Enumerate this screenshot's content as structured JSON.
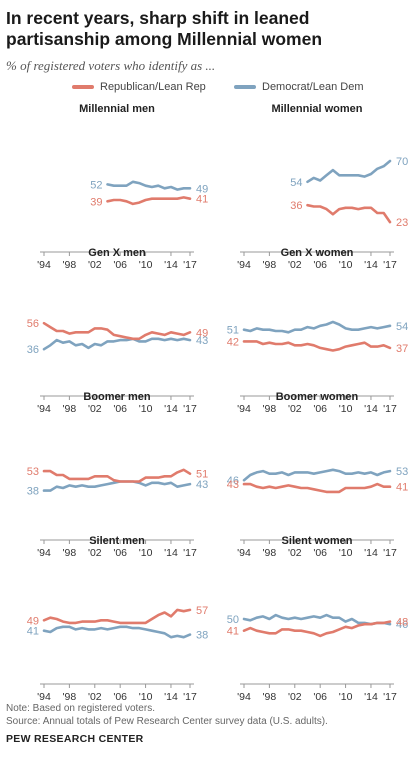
{
  "title": "In recent years, sharp shift in leaned partisanship among Millennial women",
  "subtitle": "% of registered voters who identify as ...",
  "legend": {
    "rep": "Republican/Lean Rep",
    "dem": "Democrat/Lean Dem"
  },
  "colors": {
    "rep": "#e07b6c",
    "dem": "#7fa3bf",
    "axis": "#999999",
    "text": "#222222"
  },
  "note": "Note: Based on registered voters.",
  "source": "Source: Annual totals of Pew Research Center survey data (U.S. adults).",
  "footer": "PEW RESEARCH CENTER",
  "chart_data": [
    {
      "type": "line",
      "title": "Millennial men",
      "ylim": [
        0,
        100
      ],
      "xticks": [
        "'94",
        "'98",
        "'02",
        "'06",
        "'10",
        "'14",
        "'17"
      ],
      "start_label": {
        "rep": "39",
        "dem": "52"
      },
      "end_label": {
        "rep": "41",
        "dem": "49"
      },
      "series": [
        {
          "key": "dem",
          "x": [
            2004,
            2005,
            2006,
            2007,
            2008,
            2009,
            2010,
            2011,
            2012,
            2013,
            2014,
            2015,
            2016,
            2017
          ],
          "values": [
            52,
            51,
            51,
            51,
            54,
            53,
            51,
            50,
            51,
            49,
            50,
            48,
            49,
            49
          ]
        },
        {
          "key": "rep",
          "x": [
            2004,
            2005,
            2006,
            2007,
            2008,
            2009,
            2010,
            2011,
            2012,
            2013,
            2014,
            2015,
            2016,
            2017
          ],
          "values": [
            39,
            40,
            40,
            39,
            37,
            38,
            40,
            41,
            41,
            41,
            41,
            41,
            42,
            41
          ]
        }
      ]
    },
    {
      "type": "line",
      "title": "Millennial women",
      "ylim": [
        0,
        100
      ],
      "xticks": [
        "'94",
        "'98",
        "'02",
        "'06",
        "'10",
        "'14",
        "'17"
      ],
      "start_label": {
        "rep": "36",
        "dem": "54"
      },
      "end_label": {
        "rep": "23",
        "dem": "70"
      },
      "series": [
        {
          "key": "dem",
          "x": [
            2004,
            2005,
            2006,
            2007,
            2008,
            2009,
            2010,
            2011,
            2012,
            2013,
            2014,
            2015,
            2016,
            2017
          ],
          "values": [
            54,
            57,
            55,
            59,
            63,
            59,
            59,
            59,
            59,
            58,
            60,
            64,
            66,
            70
          ]
        },
        {
          "key": "rep",
          "x": [
            2004,
            2005,
            2006,
            2007,
            2008,
            2009,
            2010,
            2011,
            2012,
            2013,
            2014,
            2015,
            2016,
            2017
          ],
          "values": [
            36,
            35,
            35,
            33,
            29,
            33,
            34,
            34,
            33,
            34,
            34,
            30,
            30,
            23
          ]
        }
      ]
    },
    {
      "type": "line",
      "title": "Gen X men",
      "ylim": [
        0,
        100
      ],
      "xticks": [
        "'94",
        "'98",
        "'02",
        "'06",
        "'10",
        "'14",
        "'17"
      ],
      "start_label": {
        "rep": "56",
        "dem": "36"
      },
      "end_label": {
        "rep": "49",
        "dem": "43"
      },
      "series": [
        {
          "key": "dem",
          "x": [
            1994,
            1995,
            1996,
            1997,
            1998,
            1999,
            2000,
            2001,
            2002,
            2003,
            2004,
            2005,
            2006,
            2007,
            2008,
            2009,
            2010,
            2011,
            2012,
            2013,
            2014,
            2015,
            2016,
            2017
          ],
          "values": [
            36,
            39,
            43,
            41,
            42,
            39,
            40,
            37,
            40,
            39,
            42,
            42,
            43,
            43,
            44,
            42,
            42,
            44,
            44,
            43,
            44,
            43,
            44,
            43
          ]
        },
        {
          "key": "rep",
          "x": [
            1994,
            1995,
            1996,
            1997,
            1998,
            1999,
            2000,
            2001,
            2002,
            2003,
            2004,
            2005,
            2006,
            2007,
            2008,
            2009,
            2010,
            2011,
            2012,
            2013,
            2014,
            2015,
            2016,
            2017
          ],
          "values": [
            56,
            53,
            50,
            50,
            48,
            49,
            49,
            49,
            52,
            52,
            51,
            47,
            46,
            45,
            44,
            44,
            47,
            49,
            48,
            47,
            49,
            48,
            47,
            49
          ]
        }
      ]
    },
    {
      "type": "line",
      "title": "Gen X women",
      "ylim": [
        0,
        100
      ],
      "xticks": [
        "'94",
        "'98",
        "'02",
        "'06",
        "'10",
        "'14",
        "'17"
      ],
      "start_label": {
        "rep": "42",
        "dem": "51"
      },
      "end_label": {
        "rep": "37",
        "dem": "54"
      },
      "series": [
        {
          "key": "dem",
          "x": [
            1994,
            1995,
            1996,
            1997,
            1998,
            1999,
            2000,
            2001,
            2002,
            2003,
            2004,
            2005,
            2006,
            2007,
            2008,
            2009,
            2010,
            2011,
            2012,
            2013,
            2014,
            2015,
            2016,
            2017
          ],
          "values": [
            51,
            50,
            52,
            51,
            51,
            50,
            50,
            49,
            51,
            51,
            53,
            52,
            54,
            55,
            57,
            55,
            52,
            51,
            51,
            52,
            53,
            52,
            53,
            54
          ]
        },
        {
          "key": "rep",
          "x": [
            1994,
            1995,
            1996,
            1997,
            1998,
            1999,
            2000,
            2001,
            2002,
            2003,
            2004,
            2005,
            2006,
            2007,
            2008,
            2009,
            2010,
            2011,
            2012,
            2013,
            2014,
            2015,
            2016,
            2017
          ],
          "values": [
            42,
            42,
            42,
            40,
            41,
            40,
            40,
            41,
            39,
            39,
            40,
            39,
            37,
            36,
            35,
            36,
            38,
            39,
            40,
            41,
            38,
            38,
            39,
            37
          ]
        }
      ]
    },
    {
      "type": "line",
      "title": "Boomer men",
      "ylim": [
        0,
        100
      ],
      "xticks": [
        "'94",
        "'98",
        "'02",
        "'06",
        "'10",
        "'14",
        "'17"
      ],
      "start_label": {
        "rep": "53",
        "dem": "38"
      },
      "end_label": {
        "rep": "51",
        "dem": "43"
      },
      "series": [
        {
          "key": "dem",
          "x": [
            1994,
            1995,
            1996,
            1997,
            1998,
            1999,
            2000,
            2001,
            2002,
            2003,
            2004,
            2005,
            2006,
            2007,
            2008,
            2009,
            2010,
            2011,
            2012,
            2013,
            2014,
            2015,
            2016,
            2017
          ],
          "values": [
            38,
            38,
            41,
            40,
            42,
            41,
            42,
            41,
            41,
            42,
            43,
            44,
            45,
            45,
            45,
            44,
            42,
            44,
            44,
            43,
            44,
            41,
            42,
            43
          ]
        },
        {
          "key": "rep",
          "x": [
            1994,
            1995,
            1996,
            1997,
            1998,
            1999,
            2000,
            2001,
            2002,
            2003,
            2004,
            2005,
            2006,
            2007,
            2008,
            2009,
            2010,
            2011,
            2012,
            2013,
            2014,
            2015,
            2016,
            2017
          ],
          "values": [
            53,
            53,
            50,
            50,
            47,
            47,
            47,
            47,
            49,
            49,
            49,
            46,
            45,
            45,
            45,
            45,
            48,
            48,
            48,
            49,
            49,
            52,
            54,
            51
          ]
        }
      ]
    },
    {
      "type": "line",
      "title": "Boomer women",
      "ylim": [
        0,
        100
      ],
      "xticks": [
        "'94",
        "'98",
        "'02",
        "'06",
        "'10",
        "'14",
        "'17"
      ],
      "start_label": {
        "rep": "43",
        "dem": "46"
      },
      "end_label": {
        "rep": "41",
        "dem": "53"
      },
      "series": [
        {
          "key": "dem",
          "x": [
            1994,
            1995,
            1996,
            1997,
            1998,
            1999,
            2000,
            2001,
            2002,
            2003,
            2004,
            2005,
            2006,
            2007,
            2008,
            2009,
            2010,
            2011,
            2012,
            2013,
            2014,
            2015,
            2016,
            2017
          ],
          "values": [
            46,
            50,
            52,
            53,
            51,
            51,
            52,
            50,
            52,
            52,
            52,
            51,
            52,
            53,
            54,
            53,
            51,
            51,
            52,
            51,
            52,
            50,
            52,
            53
          ]
        },
        {
          "key": "rep",
          "x": [
            1994,
            1995,
            1996,
            1997,
            1998,
            1999,
            2000,
            2001,
            2002,
            2003,
            2004,
            2005,
            2006,
            2007,
            2008,
            2009,
            2010,
            2011,
            2012,
            2013,
            2014,
            2015,
            2016,
            2017
          ],
          "values": [
            43,
            43,
            41,
            40,
            41,
            40,
            41,
            42,
            41,
            40,
            40,
            39,
            38,
            37,
            37,
            37,
            40,
            40,
            40,
            40,
            41,
            43,
            41,
            41
          ]
        }
      ]
    },
    {
      "type": "line",
      "title": "Silent men",
      "ylim": [
        0,
        100
      ],
      "xticks": [
        "'94",
        "'98",
        "'02",
        "'06",
        "'10",
        "'14",
        "'17"
      ],
      "start_label": {
        "rep": "49",
        "dem": "41"
      },
      "end_label": {
        "rep": "57",
        "dem": "38"
      },
      "series": [
        {
          "key": "dem",
          "x": [
            1994,
            1995,
            1996,
            1997,
            1998,
            1999,
            2000,
            2001,
            2002,
            2003,
            2004,
            2005,
            2006,
            2007,
            2008,
            2009,
            2010,
            2011,
            2012,
            2013,
            2014,
            2015,
            2016,
            2017
          ],
          "values": [
            41,
            40,
            43,
            44,
            44,
            42,
            43,
            42,
            42,
            43,
            42,
            43,
            44,
            44,
            43,
            43,
            42,
            41,
            40,
            39,
            36,
            37,
            36,
            38
          ]
        },
        {
          "key": "rep",
          "x": [
            1994,
            1995,
            1996,
            1997,
            1998,
            1999,
            2000,
            2001,
            2002,
            2003,
            2004,
            2005,
            2006,
            2007,
            2008,
            2009,
            2010,
            2011,
            2012,
            2013,
            2014,
            2015,
            2016,
            2017
          ],
          "values": [
            49,
            51,
            50,
            48,
            47,
            47,
            48,
            48,
            48,
            49,
            49,
            48,
            47,
            47,
            47,
            47,
            47,
            50,
            53,
            55,
            52,
            57,
            56,
            57
          ]
        }
      ]
    },
    {
      "type": "line",
      "title": "Silent women",
      "ylim": [
        0,
        100
      ],
      "xticks": [
        "'94",
        "'98",
        "'02",
        "'06",
        "'10",
        "'14",
        "'17"
      ],
      "start_label": {
        "rep": "41",
        "dem": "50"
      },
      "end_label": {
        "rep": "48",
        "dem": "46"
      },
      "series": [
        {
          "key": "dem",
          "x": [
            1994,
            1995,
            1996,
            1997,
            1998,
            1999,
            2000,
            2001,
            2002,
            2003,
            2004,
            2005,
            2006,
            2007,
            2008,
            2009,
            2010,
            2011,
            2012,
            2013,
            2014,
            2015,
            2016,
            2017
          ],
          "values": [
            50,
            49,
            51,
            52,
            50,
            53,
            51,
            50,
            51,
            50,
            51,
            52,
            51,
            53,
            51,
            51,
            48,
            50,
            47,
            47,
            46,
            47,
            47,
            46
          ]
        },
        {
          "key": "rep",
          "x": [
            1994,
            1995,
            1996,
            1997,
            1998,
            1999,
            2000,
            2001,
            2002,
            2003,
            2004,
            2005,
            2006,
            2007,
            2008,
            2009,
            2010,
            2011,
            2012,
            2013,
            2014,
            2015,
            2016,
            2017
          ],
          "values": [
            41,
            43,
            41,
            40,
            39,
            39,
            42,
            42,
            41,
            41,
            40,
            39,
            37,
            39,
            40,
            42,
            44,
            43,
            45,
            46,
            46,
            47,
            47,
            48
          ]
        }
      ]
    }
  ]
}
